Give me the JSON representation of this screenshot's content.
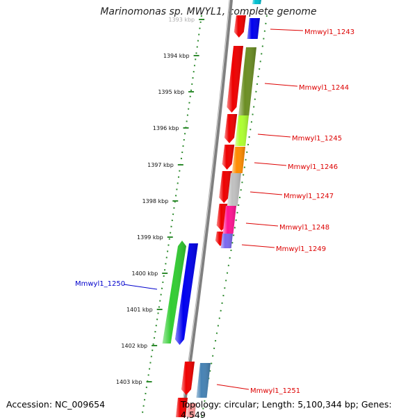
{
  "title": "Marinomonas sp. MWYL1, complete genome",
  "accession": "Accession: NC_009654",
  "topology": "Topology: circular; Length: 5,100,344 bp; Genes: 4,549",
  "ticks": [
    {
      "label": "1393 kbp",
      "faded": true
    },
    {
      "label": "1394 kbp"
    },
    {
      "label": "1395 kbp"
    },
    {
      "label": "1396 kbp"
    },
    {
      "label": "1397 kbp"
    },
    {
      "label": "1398 kbp"
    },
    {
      "label": "1399 kbp"
    },
    {
      "label": "1400 kbp"
    },
    {
      "label": "1401 kbp"
    },
    {
      "label": "1402 kbp"
    },
    {
      "label": "1403 kbp"
    }
  ],
  "genes": [
    {
      "label": "Mmwyl1_1243",
      "strand": "forward",
      "color": "#0000ee",
      "label_color": "#dd0000"
    },
    {
      "label": "Mmwyl1_1244",
      "strand": "forward",
      "color": "#6b8e23",
      "label_color": "#dd0000"
    },
    {
      "label": "Mmwyl1_1245",
      "strand": "forward",
      "color": "#adff2f",
      "label_color": "#dd0000"
    },
    {
      "label": "Mmwyl1_1246",
      "strand": "forward",
      "color": "#ff8c00",
      "label_color": "#dd0000"
    },
    {
      "label": "Mmwyl1_1247",
      "strand": "forward",
      "color": "#c0c0c0",
      "label_color": "#dd0000"
    },
    {
      "label": "Mmwyl1_1248",
      "strand": "forward",
      "color": "#ff1493",
      "label_color": "#dd0000"
    },
    {
      "label": "Mmwyl1_1249",
      "strand": "forward",
      "color": "#7b68ee",
      "label_color": "#dd0000"
    },
    {
      "label": "Mmwyl1_1250",
      "strand": "reverse",
      "color": "#32cd32",
      "label_color": "#0000cc"
    },
    {
      "label": "Mmwyl1_1251",
      "strand": "forward",
      "color": "#4682b4",
      "label_color": "#dd0000"
    }
  ],
  "colors": {
    "cds_track": "#ee0000",
    "backbone": "#808080",
    "dotted_ring": "#2e8b2e",
    "unlabeled_orf": "#0000ee"
  }
}
